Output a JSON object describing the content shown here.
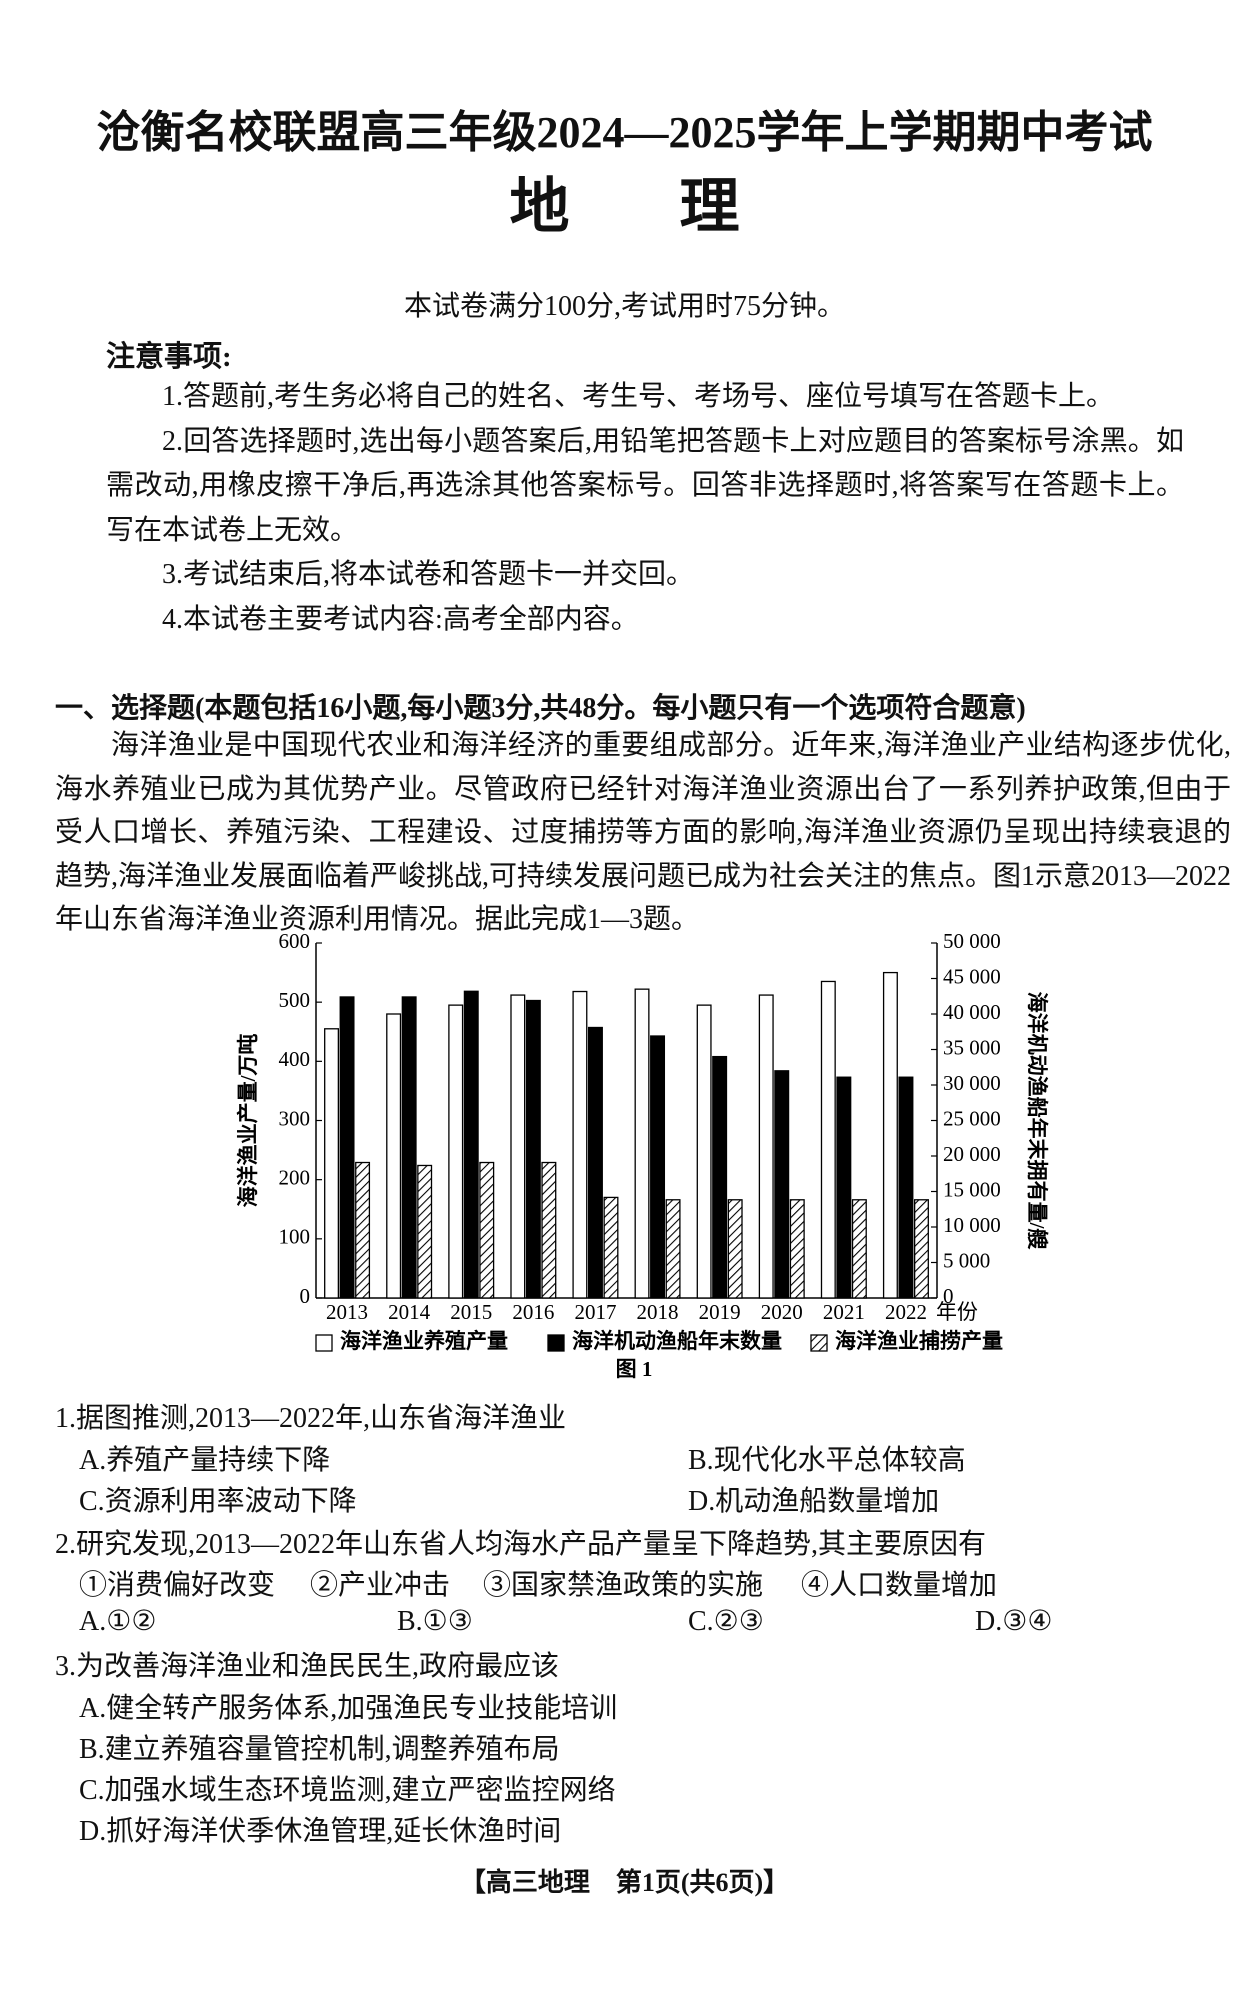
{
  "header": {
    "title": "沧衡名校联盟高三年级2024—2025学年上学期期中考试",
    "subject": "地理",
    "info": "本试卷满分100分,考试用时75分钟。"
  },
  "notes": {
    "heading": "注意事项:",
    "items": [
      "1.答题前,考生务必将自己的姓名、考生号、考场号、座位号填写在答题卡上。",
      "2.回答选择题时,选出每小题答案后,用铅笔把答题卡上对应题目的答案标号涂黑。如需改动,用橡皮擦干净后,再选涂其他答案标号。回答非选择题时,将答案写在答题卡上。写在本试卷上无效。",
      "3.考试结束后,将本试卷和答题卡一并交回。",
      "4.本试卷主要考试内容:高考全部内容。"
    ]
  },
  "section": {
    "heading": "一、选择题(本题包括16小题,每小题3分,共48分。每小题只有一个选项符合题意)",
    "passage": "海洋渔业是中国现代农业和海洋经济的重要组成部分。近年来,海洋渔业产业结构逐步优化,海水养殖业已成为其优势产业。尽管政府已经针对海洋渔业资源出台了一系列养护政策,但由于受人口增长、养殖污染、工程建设、过度捕捞等方面的影响,海洋渔业资源仍呈现出持续衰退的趋势,海洋渔业发展面临着严峻挑战,可持续发展问题已成为社会关注的焦点。图1示意2013—2022年山东省海洋渔业资源利用情况。据此完成1—3题。"
  },
  "chart_data": {
    "type": "bar",
    "caption": "图 1",
    "x_label": "年份",
    "y_label": "海洋渔业产量/万吨",
    "y2_label": "海洋机动渔船年末拥有量/艘",
    "categories": [
      "2013",
      "2014",
      "2015",
      "2016",
      "2017",
      "2018",
      "2019",
      "2020",
      "2021",
      "2022"
    ],
    "series": [
      {
        "name": "海洋渔业养殖产量",
        "color": "#ffffff",
        "axis": "y",
        "values": [
          455,
          480,
          495,
          512,
          518,
          522,
          495,
          512,
          535,
          550
        ]
      },
      {
        "name": "海洋机动渔船年末数量",
        "color": "#000000",
        "axis": "y2",
        "values": [
          42400,
          42400,
          43200,
          41900,
          38100,
          36900,
          34000,
          32000,
          31100,
          31100
        ]
      },
      {
        "name": "海洋渔业捕捞产量",
        "color": "#000000",
        "axis": "y",
        "hatch": true,
        "values": [
          229,
          224,
          229,
          229,
          170,
          166,
          166,
          166,
          166,
          166
        ]
      }
    ],
    "ylim": [
      0,
      600
    ],
    "yticks": [
      0,
      100,
      200,
      300,
      400,
      500,
      600
    ],
    "y2lim": [
      0,
      50000
    ],
    "y2ticks": [
      0,
      {
        "value": 5000,
        "label": "5 000"
      },
      {
        "value": 10000,
        "label": "10 000"
      },
      {
        "value": 15000,
        "label": "15 000"
      },
      {
        "value": 20000,
        "label": "20 000"
      },
      {
        "value": 25000,
        "label": "25 000"
      },
      {
        "value": 30000,
        "label": "30 000"
      },
      {
        "value": 35000,
        "label": "35 000"
      },
      {
        "value": 40000,
        "label": "40 000"
      },
      {
        "value": 45000,
        "label": "45 000"
      },
      {
        "value": 50000,
        "label": "50 000"
      }
    ],
    "grid": false,
    "legend": "bottom"
  },
  "questions": [
    {
      "stem": "1.据图推测,2013—2022年,山东省海洋渔业",
      "options": [
        "A.养殖产量持续下降",
        "B.现代化水平总体较高",
        "C.资源利用率波动下降",
        "D.机动渔船数量增加"
      ]
    },
    {
      "stem": "2.研究发现,2013—2022年山东省人均海水产品产量呈下降趋势,其主要原因有",
      "items": [
        "①消费偏好改变",
        "②产业冲击",
        "③国家禁渔政策的实施",
        "④人口数量增加"
      ],
      "options": [
        "A.①②",
        "B.①③",
        "C.②③",
        "D.③④"
      ]
    },
    {
      "stem": "3.为改善海洋渔业和渔民民生,政府最应该",
      "options": [
        "A.健全转产服务体系,加强渔民专业技能培训",
        "B.建立养殖容量管控机制,调整养殖布局",
        "C.加强水域生态环境监测,建立严密监控网络",
        "D.抓好海洋伏季休渔管理,延长休渔时间"
      ]
    }
  ],
  "footer": "【高三地理　第1页(共6页)】"
}
